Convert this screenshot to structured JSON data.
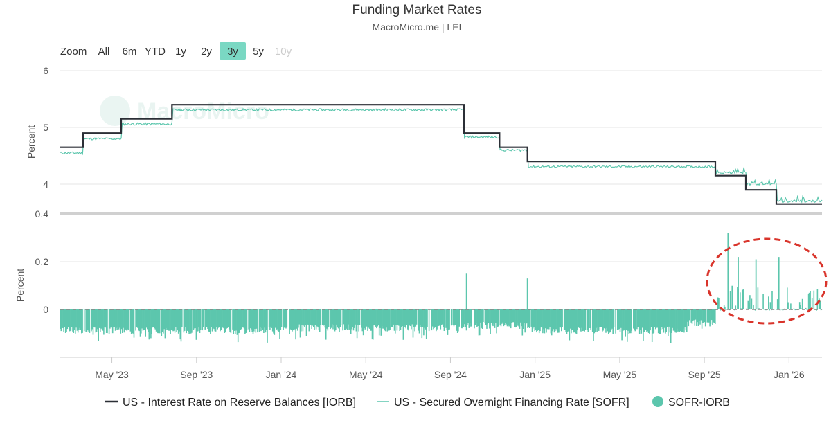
{
  "header": {
    "title": "Funding Market Rates",
    "subtitle": "MacroMicro.me | LEI"
  },
  "range_selector": {
    "zoom_label": "Zoom",
    "buttons": [
      "All",
      "6m",
      "YTD",
      "1y",
      "2y",
      "3y",
      "5y",
      "10y"
    ],
    "selected": "3y",
    "disabled": [
      "10y"
    ]
  },
  "watermark": "MacroMicro",
  "colors": {
    "iorb": "#2b2f36",
    "sofr": "#5cc6ad",
    "spread": "#5cc6ad",
    "selected_button": "#7ad8c3",
    "grid": "#e6e6e6",
    "annotation": "#d9342b"
  },
  "chart_data": [
    {
      "type": "line",
      "title": "Funding Market Rates",
      "ylabel": "Percent",
      "ylim": [
        3.5,
        6
      ],
      "yticks": [
        "4",
        "5",
        "6"
      ],
      "x_tick_labels": [
        "May '23",
        "Sep '23",
        "Jan '24",
        "May '24",
        "Sep '24",
        "Jan '25",
        "May '25",
        "Sep '25",
        "Jan '26"
      ],
      "x_range": [
        "2023-03",
        "2026-02"
      ],
      "series": [
        {
          "name": "US - Interest Rate on Reserve Balances [IORB]",
          "step_points": [
            [
              2023.13,
              4.65
            ],
            [
              2023.22,
              4.9
            ],
            [
              2023.37,
              5.15
            ],
            [
              2023.57,
              5.4
            ],
            [
              2024.72,
              4.9
            ],
            [
              2024.86,
              4.65
            ],
            [
              2024.97,
              4.4
            ],
            [
              2025.71,
              4.15
            ],
            [
              2025.83,
              3.9
            ],
            [
              2025.95,
              3.65
            ],
            [
              2026.13,
              3.65
            ]
          ]
        },
        {
          "name": "US - Secured Overnight Financing Rate [SOFR]",
          "approx_points": [
            [
              2023.13,
              4.55
            ],
            [
              2023.22,
              4.8
            ],
            [
              2023.37,
              5.06
            ],
            [
              2023.57,
              5.31
            ],
            [
              2024.72,
              4.83
            ],
            [
              2024.86,
              4.6
            ],
            [
              2024.97,
              4.31
            ],
            [
              2025.71,
              4.2
            ],
            [
              2025.83,
              4.0
            ],
            [
              2025.95,
              3.7
            ],
            [
              2026.13,
              3.68
            ]
          ]
        }
      ]
    },
    {
      "type": "bar",
      "ylabel": "Percent",
      "ylim": [
        -0.2,
        0.4
      ],
      "yticks": [
        "0",
        "0.2",
        "0.4"
      ],
      "series": [
        {
          "name": "SOFR-IORB",
          "segments": [
            {
              "from": 2023.13,
              "to": 2024.0,
              "level": -0.09
            },
            {
              "from": 2024.0,
              "to": 2024.72,
              "level": -0.08
            },
            {
              "from": 2024.72,
              "to": 2024.97,
              "level": -0.07
            },
            {
              "from": 2024.97,
              "to": 2025.6,
              "level": -0.09
            },
            {
              "from": 2025.6,
              "to": 2025.71,
              "level": -0.06
            },
            {
              "from": 2025.71,
              "to": 2026.13,
              "level": 0.04
            }
          ],
          "spikes": [
            [
              2024.73,
              0.15
            ],
            [
              2024.97,
              0.13
            ],
            [
              2025.76,
              0.32
            ],
            [
              2025.8,
              0.22
            ],
            [
              2025.87,
              0.21
            ],
            [
              2025.96,
              0.22
            ],
            [
              2026.08,
              0.07
            ]
          ]
        }
      ]
    }
  ],
  "legend": {
    "items": [
      "US - Interest Rate on Reserve Balances [IORB]",
      "US - Secured Overnight Financing Rate [SOFR]",
      "SOFR-IORB"
    ]
  }
}
